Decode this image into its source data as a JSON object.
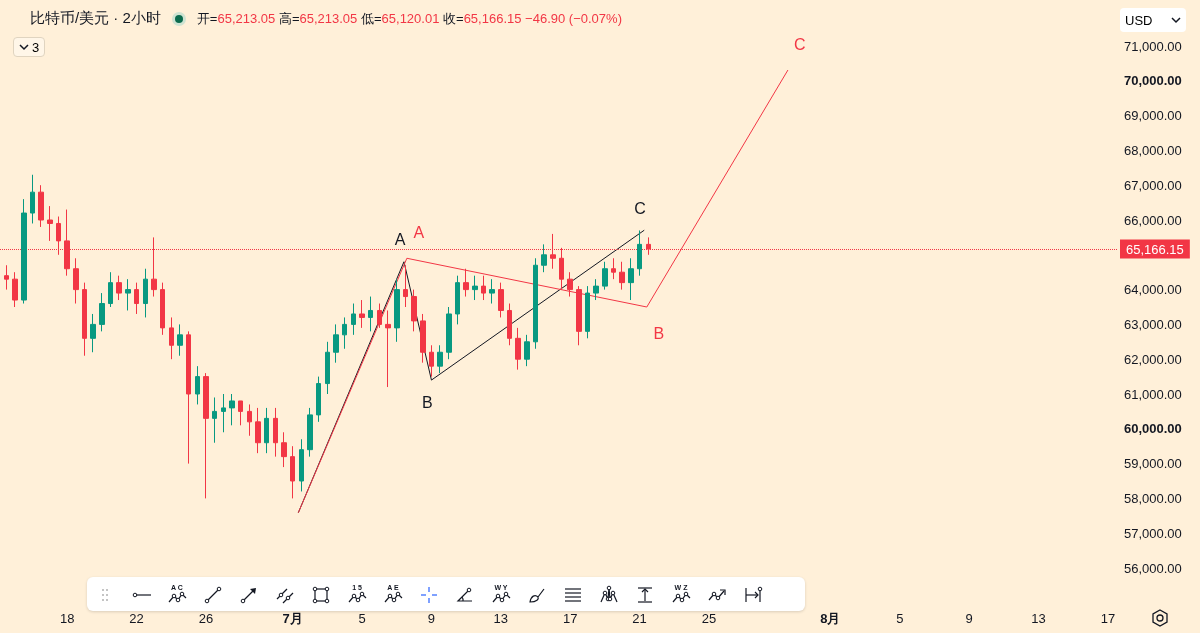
{
  "chart_data": {
    "type": "candlestick",
    "title": "比特币/美元 · 2小时",
    "subtitle": "开=65,213.05 高=65,213.05 低=65,120.01 收=65,166.15 −46.90 (−0.07%)",
    "annotations": [
      "USD",
      "3",
      "A C",
      "1 5",
      "A E",
      "W Y",
      "W Z"
    ],
    "series": [
      {
        "type": "candlestick",
        "colors": [
          "#f23645",
          "#f23645",
          "#089981",
          "#089981",
          "#f23645",
          "#f23645",
          "#f23645",
          "#f23645",
          "#f23645",
          "#f23645",
          "#089981",
          "#089981",
          "#089981",
          "#f23645",
          "#089981",
          "#f23645",
          "#089981",
          "#f23645",
          "#f23645",
          "#f23645",
          "#089981",
          "#f23645",
          "#089981",
          "#f23645",
          "#089981",
          "#089981",
          "#089981",
          "#f23645",
          "#f23645",
          "#f23645",
          "#089981",
          "#f23645",
          "#f23645",
          "#f23645",
          "#089981",
          "#089981",
          "#089981",
          "#089981",
          "#089981",
          "#089981",
          "#089981",
          "#f23645",
          "#089981",
          "#f23645",
          "#f23645",
          "#089981",
          "#f23645",
          "#f23645",
          "#f23645",
          "#f23645",
          "#089981",
          "#089981",
          "#089981",
          "#f23645",
          "#089981",
          "#f23645",
          "#089981",
          "#f23645",
          "#f23645",
          "#f23645",
          "#089981",
          "#089981",
          "#089981",
          "#f23645",
          "#f23645",
          "#f23645",
          "#f23645",
          "#089981",
          "#089981",
          "#089981",
          "#f23645",
          "#f23645",
          "#089981",
          "#089981",
          "#f23645"
        ],
        "x": [
          "--06-14T12:00",
          "--06-15T00:00",
          "--06-15T12:00",
          "--06-16T00:00",
          "--06-16T12:00",
          "--06-17T00:00",
          "--06-17T12:00",
          "--06-18T00:00",
          "--06-18T12:00",
          "--06-19T00:00",
          "--06-19T12:00",
          "--06-20T00:00",
          "--06-20T12:00",
          "--06-21T00:00",
          "--06-21T12:00",
          "--06-22T00:00",
          "--06-22T12:00",
          "--06-23T00:00",
          "--06-23T12:00",
          "--06-24T00:00",
          "--06-24T12:00",
          "--06-25T00:00",
          "--06-25T12:00",
          "--06-26T00:00",
          "--06-26T12:00",
          "--06-27T00:00",
          "--06-27T12:00",
          "--06-28T00:00",
          "--06-28T12:00",
          "--06-29T00:00",
          "--06-29T12:00",
          "--06-30T00:00",
          "--06-30T12:00",
          "--07-01T00:00",
          "--07-01T12:00",
          "--07-02T00:00",
          "--07-02T12:00",
          "--07-03T00:00",
          "--07-03T12:00",
          "--07-04T00:00",
          "--07-04T12:00",
          "--07-05T00:00",
          "--07-05T12:00",
          "--07-06T00:00",
          "--07-06T12:00",
          "--07-07T00:00",
          "--07-07T12:00",
          "--07-08T00:00",
          "--07-08T12:00",
          "--07-09T00:00",
          "--07-09T12:00",
          "--07-10T00:00",
          "--07-10T12:00",
          "--07-11T00:00",
          "--07-11T12:00",
          "--07-12T00:00",
          "--07-12T12:00",
          "--07-13T00:00",
          "--07-13T12:00",
          "--07-14T00:00",
          "--07-14T12:00",
          "--07-15T00:00",
          "--07-15T12:00",
          "--07-16T00:00",
          "--07-16T12:00",
          "--07-17T00:00",
          "--07-17T12:00",
          "--07-18T00:00",
          "--07-18T12:00",
          "--07-19T00:00",
          "--07-19T12:00",
          "--07-20T00:00",
          "--07-20T12:00",
          "--07-21T00:00",
          "--07-21T12:00"
        ],
        "ohlc": [
          [
            64400,
            64700,
            64000,
            64300
          ],
          [
            64300,
            64500,
            63500,
            63700
          ],
          [
            63700,
            66600,
            63600,
            66200
          ],
          [
            66200,
            67300,
            65900,
            66800
          ],
          [
            66800,
            67000,
            65800,
            66000
          ],
          [
            66000,
            66400,
            65400,
            65900
          ],
          [
            65900,
            66100,
            65000,
            65400
          ],
          [
            65400,
            66300,
            64400,
            64600
          ],
          [
            64600,
            64900,
            63600,
            64000
          ],
          [
            64000,
            64200,
            62100,
            62600
          ],
          [
            62600,
            63300,
            62200,
            63000
          ],
          [
            63000,
            63900,
            62800,
            63600
          ],
          [
            63600,
            64500,
            63500,
            64200
          ],
          [
            64200,
            64400,
            63700,
            63900
          ],
          [
            63900,
            64300,
            63400,
            64000
          ],
          [
            64000,
            64200,
            63300,
            63600
          ],
          [
            63600,
            64600,
            63200,
            64300
          ],
          [
            64300,
            65500,
            63800,
            64000
          ],
          [
            64000,
            64200,
            62700,
            62900
          ],
          [
            62900,
            63200,
            62000,
            62400
          ],
          [
            62400,
            63000,
            62100,
            62700
          ],
          [
            62700,
            62800,
            59000,
            61000
          ],
          [
            61000,
            61800,
            60700,
            61500
          ],
          [
            61500,
            61600,
            58000,
            60300
          ],
          [
            60300,
            60900,
            59600,
            60500
          ],
          [
            60500,
            61000,
            59900,
            60600
          ],
          [
            60600,
            61000,
            60100,
            60800
          ],
          [
            60800,
            60800,
            60100,
            60500
          ],
          [
            60500,
            60700,
            59800,
            60200
          ],
          [
            60200,
            60600,
            59300,
            59600
          ],
          [
            59600,
            60600,
            59300,
            60300
          ],
          [
            60300,
            60600,
            59200,
            59600
          ],
          [
            59600,
            59900,
            58900,
            59200
          ],
          [
            59200,
            59500,
            58000,
            58500
          ],
          [
            58500,
            59700,
            58200,
            59400
          ],
          [
            59400,
            60600,
            59200,
            60400
          ],
          [
            60400,
            61500,
            60200,
            61300
          ],
          [
            61300,
            62500,
            61000,
            62200
          ],
          [
            62200,
            63000,
            61900,
            62700
          ],
          [
            62700,
            63200,
            62300,
            63000
          ],
          [
            63000,
            63600,
            62700,
            63300
          ],
          [
            63300,
            63700,
            62900,
            63200
          ],
          [
            63200,
            63800,
            62800,
            63400
          ],
          [
            63400,
            63600,
            62900,
            63000
          ],
          [
            63000,
            63400,
            61200,
            62900
          ],
          [
            62900,
            64300,
            62500,
            64000
          ],
          [
            64000,
            64700,
            63500,
            63800
          ],
          [
            63800,
            64000,
            62800,
            63100
          ],
          [
            63100,
            63300,
            61900,
            62200
          ],
          [
            62200,
            62400,
            61500,
            61800
          ],
          [
            61800,
            62400,
            61600,
            62200
          ],
          [
            62200,
            63500,
            62000,
            63300
          ],
          [
            63300,
            64400,
            63000,
            64200
          ],
          [
            64200,
            64600,
            63800,
            64000
          ],
          [
            64000,
            64400,
            63700,
            64100
          ],
          [
            64100,
            64400,
            63700,
            63900
          ],
          [
            63900,
            64300,
            63600,
            64000
          ],
          [
            64000,
            64200,
            63200,
            63400
          ],
          [
            63400,
            63600,
            62400,
            62600
          ],
          [
            62600,
            62900,
            61700,
            62000
          ],
          [
            62000,
            62700,
            61800,
            62500
          ],
          [
            62500,
            64900,
            62300,
            64700
          ],
          [
            64700,
            65300,
            64500,
            65000
          ],
          [
            65000,
            65600,
            64600,
            64900
          ],
          [
            64900,
            65200,
            64000,
            64300
          ],
          [
            64300,
            64500,
            63800,
            64000
          ],
          [
            64000,
            64100,
            62400,
            62800
          ],
          [
            62800,
            64100,
            62600,
            63900
          ],
          [
            63900,
            64300,
            63700,
            64100
          ],
          [
            64100,
            64800,
            64000,
            64600
          ],
          [
            64600,
            64900,
            64300,
            64500
          ],
          [
            64500,
            64800,
            64000,
            64200
          ],
          [
            64200,
            64900,
            63700,
            64600
          ],
          [
            64600,
            65700,
            64400,
            65300
          ],
          [
            65300,
            65500,
            65000,
            65166.15
          ]
        ]
      },
      {
        "type": "line",
        "color": "#131722",
        "x": [
          "--07-01T08:00",
          "--07-07T10:00",
          "--07-09T00:00",
          "--07-21T06:00"
        ],
        "values": [
          57600,
          64800,
          61400,
          65700
        ],
        "value_labels": [
          null,
          "A",
          "B",
          "C"
        ]
      },
      {
        "type": "line",
        "color": "#f23645",
        "x": [
          "--07-01T08:00",
          "--07-07T14:00",
          "--07-21T10:00",
          "--07-29T13:00"
        ],
        "values": [
          57600,
          64900,
          63500,
          70300
        ],
        "value_labels": [
          null,
          "A",
          "B",
          "C"
        ]
      }
    ],
    "xlim": [
      "--06-14T03:00",
      "--08-17T14:00"
    ],
    "xticks": [
      {
        "value": "--06-18",
        "label": "18"
      },
      {
        "value": "--06-22",
        "label": "22"
      },
      {
        "value": "--06-26",
        "label": "26"
      },
      {
        "value": "--07-01",
        "label": "7月"
      },
      {
        "value": "--07-05",
        "label": "5"
      },
      {
        "value": "--07-09",
        "label": "9"
      },
      {
        "value": "--07-13",
        "label": "13"
      },
      {
        "value": "--07-17",
        "label": "17"
      },
      {
        "value": "--07-21",
        "label": "21"
      },
      {
        "value": "--07-25",
        "label": "25"
      },
      {
        "value": "--08-01",
        "label": "8月"
      },
      {
        "value": "--08-05",
        "label": "5"
      },
      {
        "value": "--08-09",
        "label": "9"
      },
      {
        "value": "--08-13",
        "label": "13"
      },
      {
        "value": "--08-17",
        "label": "17"
      }
    ],
    "ylim": [
      56000,
      71000
    ],
    "yticks": [
      {
        "value": 56000,
        "label": "56,000.00"
      },
      {
        "value": 57000,
        "label": "57,000.00"
      },
      {
        "value": 58000,
        "label": "58,000.00"
      },
      {
        "value": 59000,
        "label": "59,000.00"
      },
      {
        "value": 60000,
        "label": "60,000.00"
      },
      {
        "value": 61000,
        "label": "61,000.00"
      },
      {
        "value": 62000,
        "label": "62,000.00"
      },
      {
        "value": 63000,
        "label": "63,000.00"
      },
      {
        "value": 64000,
        "label": "64,000.00"
      },
      {
        "value": 66000,
        "label": "66,000.00"
      },
      {
        "value": 67000,
        "label": "67,000.00"
      },
      {
        "value": 68000,
        "label": "68,000.00"
      },
      {
        "value": 69000,
        "label": "69,000.00"
      },
      {
        "value": 70000,
        "label": "70,000.00"
      },
      {
        "value": 71000,
        "label": "71,000.00"
      }
    ],
    "ref_lines": [
      {
        "axis": "y",
        "value": 65166.15,
        "label": "65,166.15",
        "color": "#f23645",
        "line_style": "dotted"
      }
    ],
    "grid": false
  }
}
